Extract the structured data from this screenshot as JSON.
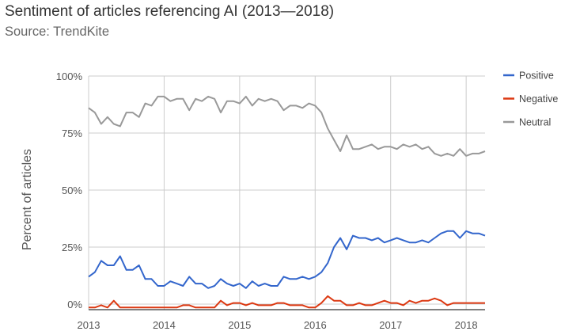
{
  "header": {
    "title": "Sentiment of articles referencing AI (2013—2018)",
    "subtitle": "Source: TrendKite"
  },
  "chart_data": {
    "type": "line",
    "title": "Sentiment of articles referencing AI (2013—2018)",
    "subtitle": "Source: TrendKite",
    "xlabel": "",
    "ylabel": "Percent of articles",
    "x_ticks": [
      "2013",
      "2014",
      "2015",
      "2016",
      "2017",
      "2018"
    ],
    "y_ticks": [
      "100%",
      "75%",
      "50%",
      "25%",
      "0%"
    ],
    "ylim": [
      0,
      100
    ],
    "xlim": [
      2013.0,
      2018.25
    ],
    "grid": true,
    "legend_position": "right",
    "x": [
      2013.0,
      2013.083,
      2013.167,
      2013.25,
      2013.333,
      2013.417,
      2013.5,
      2013.583,
      2013.667,
      2013.75,
      2013.833,
      2013.917,
      2014.0,
      2014.083,
      2014.167,
      2014.25,
      2014.333,
      2014.417,
      2014.5,
      2014.583,
      2014.667,
      2014.75,
      2014.833,
      2014.917,
      2015.0,
      2015.083,
      2015.167,
      2015.25,
      2015.333,
      2015.417,
      2015.5,
      2015.583,
      2015.667,
      2015.75,
      2015.833,
      2015.917,
      2016.0,
      2016.083,
      2016.167,
      2016.25,
      2016.333,
      2016.417,
      2016.5,
      2016.583,
      2016.667,
      2016.75,
      2016.833,
      2016.917,
      2017.0,
      2017.083,
      2017.167,
      2017.25,
      2017.333,
      2017.417,
      2017.5,
      2017.583,
      2017.667,
      2017.75,
      2017.833,
      2017.917,
      2018.0,
      2018.083,
      2018.167,
      2018.25
    ],
    "series": [
      {
        "name": "Positive",
        "color": "#3366cc",
        "values": [
          12,
          14,
          19,
          17,
          17,
          21,
          15,
          15,
          17,
          11,
          11,
          8,
          8,
          10,
          9,
          8,
          12,
          9,
          9,
          7,
          8,
          11,
          9,
          8,
          9,
          7,
          10,
          8,
          9,
          8,
          8,
          12,
          11,
          11,
          12,
          11,
          12,
          14,
          18,
          25,
          29,
          24,
          30,
          29,
          29,
          28,
          29,
          27,
          28,
          29,
          28,
          27,
          27,
          28,
          27,
          29,
          31,
          32,
          32,
          29,
          32,
          31,
          31,
          30
        ]
      },
      {
        "name": "Negative",
        "color": "#dc3912",
        "values": [
          -1.5,
          -1.5,
          -0.5,
          -1.5,
          1.5,
          -1.5,
          -1.5,
          -1.5,
          -1.5,
          -1.5,
          -1.5,
          -1.5,
          -1.5,
          -1.5,
          -1.5,
          -0.5,
          -0.5,
          -1.5,
          -1.5,
          -1.5,
          -1.5,
          1.5,
          -0.5,
          0.5,
          0.5,
          -0.5,
          0.5,
          -0.5,
          -0.5,
          -0.5,
          0.5,
          0.5,
          -0.5,
          -0.5,
          -0.5,
          -1.5,
          -1.5,
          0.5,
          3.5,
          1.5,
          1.5,
          -0.5,
          -0.5,
          0.5,
          -0.5,
          -0.5,
          0.5,
          1.5,
          0.5,
          0.5,
          -0.5,
          1.5,
          0.5,
          1.5,
          1.5,
          2.5,
          1.5,
          -0.5,
          0.5,
          0.5,
          0.5,
          0.5,
          0.5,
          0.5
        ]
      },
      {
        "name": "Neutral",
        "color": "#999999",
        "values": [
          86,
          84,
          79,
          82,
          79,
          78,
          84,
          84,
          82,
          88,
          87,
          91,
          91,
          89,
          90,
          90,
          85,
          90,
          89,
          91,
          90,
          84,
          89,
          89,
          88,
          91,
          87,
          90,
          89,
          90,
          89,
          85,
          87,
          87,
          86,
          88,
          87,
          84,
          77,
          72,
          67,
          74,
          68,
          68,
          69,
          70,
          68,
          69,
          69,
          68,
          70,
          69,
          70,
          68,
          69,
          66,
          65,
          66,
          65,
          68,
          65,
          66,
          66,
          67
        ]
      }
    ]
  }
}
